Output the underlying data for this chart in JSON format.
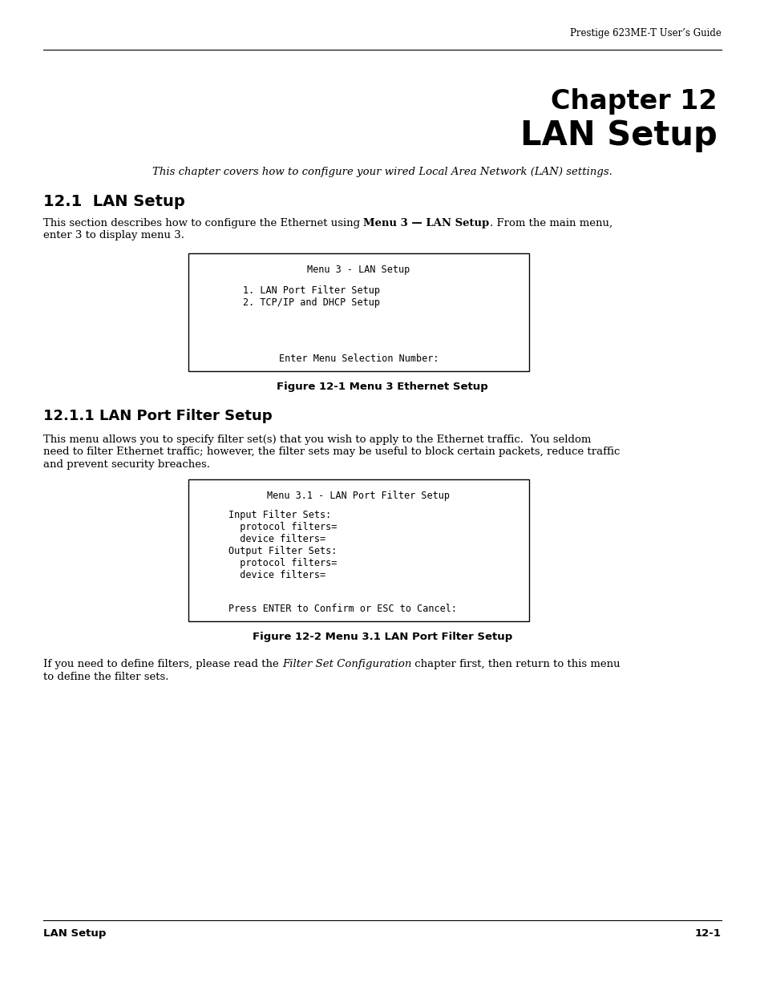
{
  "header_text": "Prestige 623ME-T User’s Guide",
  "chapter_title_line1": "Chapter 12",
  "chapter_title_line2": "LAN Setup",
  "subtitle_italic": "This chapter covers how to configure your wired Local Area Network (LAN) settings.",
  "section1_title": "12.1  LAN Setup",
  "box1_title": "Menu 3 - LAN Setup",
  "box1_item1": "1. LAN Port Filter Setup",
  "box1_item2": "2. TCP/IP and DHCP Setup",
  "box1_bottom": "Enter Menu Selection Number:",
  "fig1_caption": "Figure 12-1 Menu 3 Ethernet Setup",
  "section2_title": "12.1.1 LAN Port Filter Setup",
  "box2_title": "Menu 3.1 - LAN Port Filter Setup",
  "box2_lines": [
    "Input Filter Sets:",
    "  protocol filters=",
    "  device filters=",
    "Output Filter Sets:",
    "  protocol filters=",
    "  device filters="
  ],
  "box2_bottom": "Press ENTER to Confirm or ESC to Cancel:",
  "fig2_caption": "Figure 12-2 Menu 3.1 LAN Port Filter Setup",
  "footer_left": "LAN Setup",
  "footer_right": "12-1",
  "bg_color": "#ffffff",
  "text_color": "#000000"
}
